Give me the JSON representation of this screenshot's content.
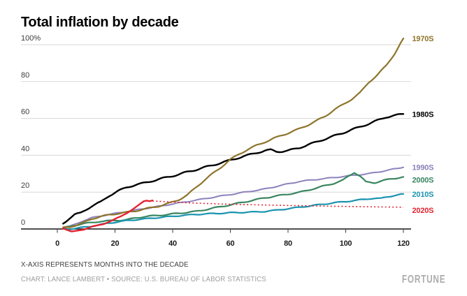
{
  "page": {
    "title": "Total inflation by decade",
    "footnote": "X-AXIS REPRESENTS MONTHS INTO THE DECADE",
    "credit": "CHART: LANCE LAMBERT • SOURCE: U.S. BUREAU OF LABOR STATISTICS",
    "brand": "FORTUNE"
  },
  "chart_data": {
    "type": "line",
    "title": "Total inflation by decade",
    "xlabel": "Months into the decade",
    "y_unit": "%",
    "x_range": [
      0,
      120
    ],
    "y_range": [
      0,
      100
    ],
    "x_ticks": [
      0,
      20,
      40,
      60,
      80,
      100,
      120
    ],
    "y_ticks": [
      {
        "value": 100,
        "label": "100%"
      },
      {
        "value": 80,
        "label": "80"
      },
      {
        "value": 60,
        "label": "60"
      },
      {
        "value": 40,
        "label": "40"
      },
      {
        "value": 20,
        "label": "20"
      },
      {
        "value": 0,
        "label": "0"
      }
    ],
    "grid": "horizontal",
    "grid_color": "#D7D7D7",
    "axis_color": "#151515",
    "legend_position": "end-of-line labels at right",
    "series": [
      {
        "id": "1970s",
        "label": "1970S",
        "color": "#8E742B",
        "line_style": "solid",
        "show_end_label": true,
        "points": [
          [
            2,
            0.9
          ],
          [
            4,
            1.0
          ],
          [
            6,
            1.8
          ],
          [
            9,
            3.3
          ],
          [
            12,
            5.6
          ],
          [
            15,
            6.7
          ],
          [
            18,
            7.7
          ],
          [
            21,
            8.4
          ],
          [
            24,
            9.0
          ],
          [
            27,
            9.8
          ],
          [
            30,
            10.7
          ],
          [
            33,
            11.7
          ],
          [
            36,
            12.7
          ],
          [
            39,
            14.1
          ],
          [
            42,
            15.8
          ],
          [
            45,
            18.3
          ],
          [
            48,
            22.5
          ],
          [
            51,
            26.5
          ],
          [
            54,
            30.2
          ],
          [
            57,
            33.8
          ],
          [
            60,
            37.7
          ],
          [
            63,
            40.6
          ],
          [
            66,
            43.1
          ],
          [
            69,
            45.3
          ],
          [
            72,
            47.2
          ],
          [
            75,
            49.1
          ],
          [
            78,
            50.9
          ],
          [
            81,
            52.6
          ],
          [
            84,
            54.4
          ],
          [
            87,
            56.5
          ],
          [
            90,
            58.8
          ],
          [
            93,
            61.3
          ],
          [
            96,
            64.7
          ],
          [
            99,
            67.4
          ],
          [
            102,
            70.4
          ],
          [
            105,
            73.9
          ],
          [
            108,
            79.6
          ],
          [
            111,
            83.6
          ],
          [
            114,
            88.6
          ],
          [
            117,
            95.2
          ],
          [
            120,
            103.4
          ]
        ]
      },
      {
        "id": "1980s",
        "label": "1980S",
        "color": "#000000",
        "line_style": "solid",
        "show_end_label": true,
        "points": [
          [
            2,
            2.9
          ],
          [
            4,
            5.6
          ],
          [
            6,
            7.8
          ],
          [
            8,
            8.6
          ],
          [
            10,
            10.6
          ],
          [
            12,
            12.5
          ],
          [
            15,
            14.6
          ],
          [
            18,
            18.1
          ],
          [
            21,
            20.5
          ],
          [
            24,
            22.6
          ],
          [
            27,
            23.9
          ],
          [
            30,
            24.9
          ],
          [
            33,
            26.1
          ],
          [
            36,
            27.3
          ],
          [
            39,
            28.4
          ],
          [
            42,
            29.6
          ],
          [
            45,
            30.9
          ],
          [
            48,
            32.1
          ],
          [
            51,
            33.4
          ],
          [
            54,
            34.7
          ],
          [
            57,
            36.0
          ],
          [
            60,
            37.3
          ],
          [
            63,
            38.7
          ],
          [
            66,
            40.0
          ],
          [
            69,
            41.3
          ],
          [
            72,
            42.5
          ],
          [
            74,
            42.9
          ],
          [
            76,
            42.0
          ],
          [
            78,
            42.1
          ],
          [
            80,
            42.5
          ],
          [
            82,
            43.3
          ],
          [
            84,
            44.1
          ],
          [
            87,
            45.7
          ],
          [
            90,
            47.3
          ],
          [
            93,
            48.9
          ],
          [
            96,
            50.5
          ],
          [
            99,
            52.1
          ],
          [
            102,
            53.8
          ],
          [
            105,
            55.4
          ],
          [
            108,
            57.1
          ],
          [
            111,
            58.9
          ],
          [
            114,
            60.7
          ],
          [
            117,
            61.6
          ],
          [
            120,
            62.4
          ]
        ]
      },
      {
        "id": "1990s",
        "label": "1990S",
        "color": "#8D81BB",
        "line_style": "solid",
        "show_end_label": true,
        "points": [
          [
            2,
            0.5
          ],
          [
            4,
            1.2
          ],
          [
            6,
            2.4
          ],
          [
            9,
            4.5
          ],
          [
            12,
            6.1
          ],
          [
            15,
            7.0
          ],
          [
            18,
            7.9
          ],
          [
            21,
            8.7
          ],
          [
            24,
            9.4
          ],
          [
            30,
            11.0
          ],
          [
            36,
            12.5
          ],
          [
            42,
            14.1
          ],
          [
            48,
            15.6
          ],
          [
            54,
            17.2
          ],
          [
            60,
            18.7
          ],
          [
            66,
            20.2
          ],
          [
            72,
            21.7
          ],
          [
            78,
            23.8
          ],
          [
            84,
            25.8
          ],
          [
            90,
            26.9
          ],
          [
            96,
            27.9
          ],
          [
            102,
            29.0
          ],
          [
            108,
            30.0
          ],
          [
            114,
            31.7
          ],
          [
            120,
            33.5
          ]
        ]
      },
      {
        "id": "2000s",
        "label": "2000S",
        "color": "#38855F",
        "line_style": "solid",
        "show_end_label": true,
        "points": [
          [
            2,
            0.6
          ],
          [
            4,
            1.2
          ],
          [
            6,
            2.0
          ],
          [
            9,
            2.9
          ],
          [
            12,
            3.4
          ],
          [
            15,
            4.2
          ],
          [
            18,
            4.4
          ],
          [
            21,
            4.7
          ],
          [
            24,
            5.0
          ],
          [
            27,
            5.9
          ],
          [
            30,
            6.7
          ],
          [
            33,
            7.1
          ],
          [
            36,
            7.5
          ],
          [
            42,
            8.5
          ],
          [
            48,
            9.5
          ],
          [
            54,
            11.3
          ],
          [
            60,
            13.1
          ],
          [
            66,
            15.0
          ],
          [
            72,
            16.9
          ],
          [
            78,
            18.4
          ],
          [
            84,
            19.9
          ],
          [
            90,
            22.3
          ],
          [
            96,
            24.8
          ],
          [
            99,
            26.4
          ],
          [
            101,
            28.7
          ],
          [
            103,
            30.7
          ],
          [
            105,
            28.6
          ],
          [
            107,
            25.5
          ],
          [
            110,
            25.1
          ],
          [
            113,
            26.3
          ],
          [
            116,
            27.2
          ],
          [
            120,
            28.3
          ]
        ]
      },
      {
        "id": "2010s",
        "label": "2010S",
        "color": "#1A93AF",
        "line_style": "solid",
        "show_end_label": true,
        "points": [
          [
            2,
            0.3
          ],
          [
            4,
            -0.1
          ],
          [
            6,
            0.3
          ],
          [
            9,
            0.9
          ],
          [
            12,
            1.5
          ],
          [
            15,
            2.4
          ],
          [
            18,
            3.2
          ],
          [
            21,
            3.9
          ],
          [
            24,
            4.5
          ],
          [
            27,
            5.0
          ],
          [
            30,
            5.4
          ],
          [
            33,
            5.9
          ],
          [
            36,
            6.3
          ],
          [
            40,
            6.9
          ],
          [
            44,
            7.4
          ],
          [
            48,
            7.9
          ],
          [
            52,
            8.2
          ],
          [
            56,
            8.5
          ],
          [
            60,
            8.8
          ],
          [
            64,
            9.0
          ],
          [
            68,
            9.2
          ],
          [
            72,
            9.5
          ],
          [
            76,
            10.2
          ],
          [
            80,
            11.0
          ],
          [
            84,
            11.8
          ],
          [
            88,
            12.6
          ],
          [
            92,
            13.4
          ],
          [
            96,
            14.2
          ],
          [
            100,
            14.9
          ],
          [
            104,
            15.6
          ],
          [
            108,
            16.4
          ],
          [
            110,
            16.6
          ],
          [
            112,
            16.5
          ],
          [
            114,
            17.3
          ],
          [
            117,
            18.2
          ],
          [
            120,
            19.0
          ]
        ]
      },
      {
        "id": "2020s",
        "label": "2020S",
        "color": "#E32431",
        "line_style": "solid",
        "show_end_label": false,
        "points": [
          [
            2,
            0.3
          ],
          [
            3,
            -0.2
          ],
          [
            5,
            -1.4
          ],
          [
            7,
            -1.0
          ],
          [
            9,
            -0.4
          ],
          [
            11,
            0.8
          ],
          [
            12,
            1.4
          ],
          [
            14,
            1.9
          ],
          [
            16,
            2.6
          ],
          [
            18,
            4.0
          ],
          [
            20,
            5.4
          ],
          [
            22,
            6.8
          ],
          [
            24,
            8.5
          ],
          [
            26,
            10.6
          ],
          [
            28,
            12.7
          ],
          [
            30,
            15.0
          ],
          [
            31,
            15.4
          ],
          [
            32,
            15.2
          ],
          [
            33,
            15.5
          ]
        ]
      },
      {
        "id": "2020s-projected",
        "label": "2020S",
        "color": "#E32431",
        "line_style": "dotted",
        "show_end_label": true,
        "points": [
          [
            33,
            15.2
          ],
          [
            45,
            14.2
          ],
          [
            60,
            13.4
          ],
          [
            75,
            12.9
          ],
          [
            90,
            12.5
          ],
          [
            105,
            12.1
          ],
          [
            120,
            11.8
          ]
        ]
      }
    ]
  }
}
